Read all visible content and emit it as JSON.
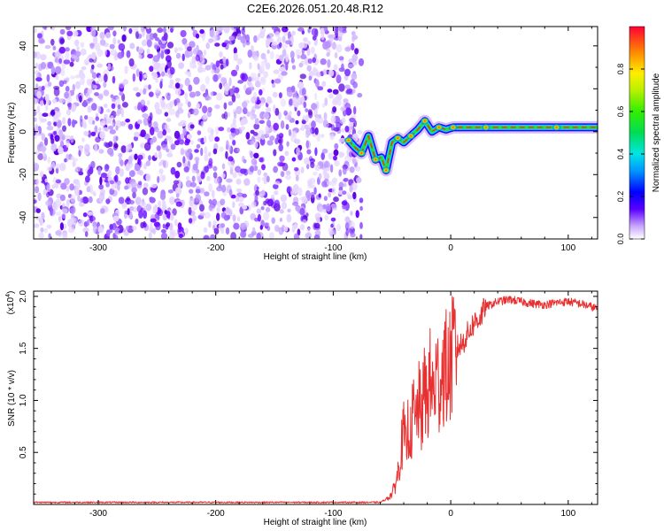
{
  "title": "C2E6.2026.051.20.48.R12",
  "colors": {
    "line": "#e83030",
    "axis": "#000000",
    "background": "#ffffff"
  },
  "chart_data": [
    {
      "type": "heatmap",
      "xlabel": "Height of straight line (km)",
      "ylabel": "Frequency (Hz)",
      "xlim": [
        -355,
        125
      ],
      "ylim": [
        -50,
        49
      ],
      "xticks": [
        -300,
        -200,
        -100,
        0,
        100
      ],
      "xtick_labels": [
        "-300",
        "-200",
        "-100",
        "0",
        "100"
      ],
      "yticks": [
        -40,
        -20,
        0,
        20,
        40
      ],
      "ytick_labels": [
        "-40",
        "-20",
        "0",
        "20",
        "40"
      ],
      "noise_region_x": [
        -355,
        -76
      ],
      "ridge": {
        "x": [
          -87,
          -82,
          -76,
          -70,
          -64,
          -59,
          -55,
          -50,
          -45,
          -40,
          -34,
          -28,
          -22,
          -16,
          -10,
          -4,
          2,
          10,
          30,
          60,
          90,
          125
        ],
        "y": [
          -4,
          -7,
          -10,
          -2,
          -13,
          -12,
          -18,
          -5,
          -3,
          -5,
          -2,
          1,
          5,
          0,
          2,
          1,
          2,
          2,
          2,
          2,
          2,
          2
        ]
      },
      "colorbar": {
        "label": "Normalized spectral amplitude",
        "range": [
          0,
          1
        ],
        "ticks": [
          0.0,
          0.2,
          0.4,
          0.6,
          0.8
        ],
        "tick_labels": [
          "0.0",
          "0.2",
          "0.4",
          "0.6",
          "0.8"
        ]
      }
    },
    {
      "type": "line",
      "xlabel": "Height of straight line (km)",
      "ylabel": "SNR (10 * v/v)",
      "exponent_label": "(x10",
      "exponent_power": "4",
      "exponent_close": ")",
      "xlim": [
        -355,
        125
      ],
      "ylim": [
        0,
        2.05
      ],
      "xticks": [
        -300,
        -200,
        -100,
        0,
        100
      ],
      "xtick_labels": [
        "-300",
        "-200",
        "-100",
        "0",
        "100"
      ],
      "yticks": [
        0.5,
        1.0,
        1.5,
        2.0
      ],
      "ytick_labels": [
        "0.5",
        "1.0",
        "1.5",
        "2.0"
      ],
      "series": [
        {
          "x": [
            -355,
            -300,
            -200,
            -100,
            -60,
            -55,
            -50,
            -47,
            -45,
            -42,
            -40,
            -38,
            -36,
            -34,
            -32,
            -30,
            -28,
            -25,
            -22,
            -20,
            -18,
            -15,
            -12,
            -10,
            -6,
            -2,
            0,
            5,
            10,
            15,
            20,
            25,
            30,
            40,
            50,
            60,
            70,
            80,
            90,
            100,
            110,
            120,
            125
          ],
          "y": [
            0.02,
            0.02,
            0.02,
            0.02,
            0.02,
            0.05,
            0.1,
            0.2,
            0.3,
            0.55,
            0.7,
            0.5,
            0.8,
            0.65,
            0.9,
            0.75,
            1.0,
            0.85,
            1.1,
            1.0,
            1.2,
            1.05,
            1.25,
            1.15,
            1.35,
            1.25,
            1.4,
            1.5,
            1.55,
            1.65,
            1.75,
            1.8,
            1.9,
            1.95,
            1.97,
            1.95,
            1.93,
            1.92,
            1.94,
            1.95,
            1.93,
            1.9,
            1.88
          ]
        }
      ]
    }
  ]
}
